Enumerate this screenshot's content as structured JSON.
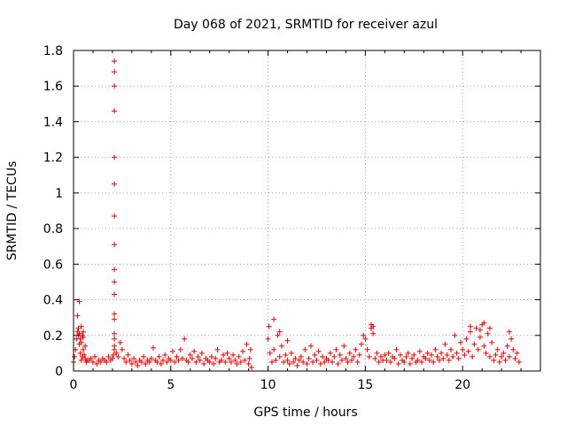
{
  "chart_data": {
    "type": "scatter",
    "title": "Day 068 of 2021, SRMTID for receiver azul",
    "xlabel": "GPS time / hours",
    "ylabel": "SRMTID / TECUs",
    "xlim": [
      0,
      24
    ],
    "ylim": [
      0,
      1.8
    ],
    "xticks": [
      0,
      5,
      10,
      15,
      20
    ],
    "xtick_labels": [
      "0",
      "5",
      "10",
      "15",
      "20"
    ],
    "yticks": [
      0,
      0.2,
      0.4,
      0.6,
      0.8,
      1,
      1.2,
      1.4,
      1.6,
      1.8
    ],
    "ytick_labels": [
      "0",
      "0.2",
      "0.4",
      "0.6",
      "0.8",
      "1",
      "1.2",
      "1.4",
      "1.6",
      "1.8"
    ],
    "grid": true,
    "marker": "+",
    "color": "#e00000",
    "series": [
      {
        "name": "SRMTID",
        "x": [
          0.0,
          0.05,
          0.1,
          0.15,
          0.2,
          0.25,
          0.3,
          0.35,
          0.4,
          0.45,
          0.5,
          0.55,
          0.6,
          0.65,
          0.7,
          0.2,
          0.25,
          0.3,
          0.35,
          0.4,
          0.45,
          0.5,
          0.3,
          0.4,
          0.5,
          0.6,
          0.8,
          0.9,
          1.0,
          1.1,
          1.2,
          1.3,
          1.4,
          1.5,
          1.6,
          1.7,
          1.8,
          1.9,
          2.0,
          2.05,
          2.1,
          2.1,
          2.1,
          2.1,
          2.1,
          2.1,
          2.1,
          2.1,
          2.1,
          2.1,
          2.1,
          2.1,
          2.1,
          2.1,
          2.1,
          2.1,
          2.1,
          2.2,
          2.3,
          2.4,
          2.5,
          2.6,
          2.7,
          2.8,
          2.9,
          3.0,
          3.1,
          3.2,
          3.3,
          3.4,
          3.5,
          3.6,
          3.7,
          3.8,
          3.9,
          4.0,
          4.1,
          4.2,
          4.3,
          4.4,
          4.5,
          4.6,
          4.7,
          4.8,
          4.9,
          5.0,
          5.1,
          5.2,
          5.3,
          5.4,
          5.5,
          5.6,
          5.7,
          5.8,
          5.9,
          6.0,
          6.1,
          6.2,
          6.3,
          6.4,
          6.5,
          6.6,
          6.7,
          6.8,
          6.9,
          7.0,
          7.1,
          7.2,
          7.3,
          7.4,
          7.5,
          7.6,
          7.7,
          7.8,
          7.9,
          8.0,
          8.1,
          8.2,
          8.3,
          8.4,
          8.5,
          8.6,
          8.7,
          8.8,
          8.9,
          9.0,
          9.05,
          9.1,
          9.15,
          10.0,
          10.05,
          10.1,
          10.2,
          10.3,
          10.4,
          10.5,
          10.6,
          10.7,
          10.8,
          10.9,
          11.0,
          11.1,
          11.2,
          11.3,
          11.4,
          11.5,
          11.6,
          11.7,
          11.8,
          11.9,
          12.0,
          12.1,
          12.2,
          12.3,
          12.4,
          12.5,
          12.6,
          12.7,
          12.8,
          12.9,
          13.0,
          13.1,
          13.2,
          13.3,
          13.4,
          13.5,
          13.6,
          13.7,
          13.8,
          13.9,
          14.0,
          14.1,
          14.2,
          14.3,
          14.4,
          14.5,
          14.6,
          14.7,
          14.8,
          14.9,
          15.0,
          15.1,
          15.2,
          15.3,
          15.4,
          15.5,
          15.6,
          15.7,
          15.8,
          15.9,
          16.0,
          16.1,
          16.2,
          16.3,
          16.4,
          16.5,
          16.6,
          16.7,
          16.8,
          16.9,
          17.0,
          17.1,
          17.2,
          17.3,
          17.4,
          17.5,
          17.6,
          17.7,
          17.8,
          17.9,
          18.0,
          18.1,
          18.2,
          18.3,
          18.4,
          18.5,
          18.6,
          18.7,
          18.8,
          18.9,
          19.0,
          19.1,
          19.2,
          19.3,
          19.4,
          19.5,
          19.6,
          19.7,
          19.8,
          19.9,
          20.0,
          20.1,
          20.2,
          20.3,
          20.4,
          20.5,
          20.6,
          20.7,
          20.8,
          20.9,
          21.0,
          21.1,
          21.2,
          21.3,
          21.4,
          21.5,
          21.6,
          21.7,
          21.8,
          21.9,
          22.0,
          22.1,
          22.2,
          22.3,
          22.4,
          22.5,
          22.6,
          22.7,
          22.8,
          22.9,
          10.3,
          10.6,
          11.0,
          15.3,
          15.4,
          20.4,
          20.9,
          21.1,
          21.4,
          22.4
        ],
        "values": [
          0.05,
          0.08,
          0.12,
          0.18,
          0.22,
          0.2,
          0.15,
          0.1,
          0.06,
          0.08,
          0.12,
          0.09,
          0.07,
          0.05,
          0.06,
          0.31,
          0.24,
          0.21,
          0.18,
          0.25,
          0.2,
          0.22,
          0.39,
          0.16,
          0.19,
          0.14,
          0.06,
          0.07,
          0.05,
          0.08,
          0.04,
          0.06,
          0.05,
          0.07,
          0.06,
          0.05,
          0.08,
          0.06,
          0.07,
          0.09,
          1.74,
          1.68,
          1.6,
          1.46,
          1.2,
          1.05,
          0.87,
          0.71,
          0.57,
          0.5,
          0.43,
          0.32,
          0.29,
          0.21,
          0.18,
          0.14,
          0.12,
          0.1,
          0.08,
          0.16,
          0.12,
          0.07,
          0.05,
          0.09,
          0.06,
          0.04,
          0.07,
          0.05,
          0.03,
          0.06,
          0.05,
          0.08,
          0.04,
          0.06,
          0.05,
          0.07,
          0.13,
          0.06,
          0.05,
          0.08,
          0.04,
          0.06,
          0.09,
          0.05,
          0.07,
          0.06,
          0.11,
          0.05,
          0.08,
          0.06,
          0.12,
          0.07,
          0.18,
          0.06,
          0.05,
          0.09,
          0.07,
          0.11,
          0.05,
          0.08,
          0.06,
          0.1,
          0.04,
          0.07,
          0.06,
          0.05,
          0.08,
          0.04,
          0.07,
          0.12,
          0.05,
          0.06,
          0.09,
          0.05,
          0.1,
          0.07,
          0.05,
          0.09,
          0.06,
          0.04,
          0.08,
          0.05,
          0.11,
          0.06,
          0.15,
          0.04,
          0.07,
          0.12,
          0.02,
          0.18,
          0.25,
          0.1,
          0.05,
          0.12,
          0.06,
          0.2,
          0.08,
          0.14,
          0.05,
          0.09,
          0.06,
          0.04,
          0.1,
          0.05,
          0.07,
          0.03,
          0.06,
          0.08,
          0.05,
          0.12,
          0.04,
          0.07,
          0.14,
          0.05,
          0.09,
          0.06,
          0.11,
          0.04,
          0.08,
          0.05,
          0.07,
          0.06,
          0.1,
          0.05,
          0.08,
          0.12,
          0.04,
          0.09,
          0.06,
          0.14,
          0.07,
          0.05,
          0.1,
          0.06,
          0.08,
          0.12,
          0.05,
          0.09,
          0.15,
          0.2,
          0.18,
          0.12,
          0.08,
          0.24,
          0.21,
          0.07,
          0.1,
          0.05,
          0.08,
          0.06,
          0.09,
          0.06,
          0.1,
          0.05,
          0.08,
          0.07,
          0.12,
          0.04,
          0.09,
          0.06,
          0.05,
          0.08,
          0.1,
          0.04,
          0.07,
          0.09,
          0.05,
          0.06,
          0.11,
          0.05,
          0.08,
          0.07,
          0.1,
          0.06,
          0.09,
          0.05,
          0.12,
          0.08,
          0.06,
          0.1,
          0.07,
          0.15,
          0.09,
          0.06,
          0.12,
          0.08,
          0.2,
          0.1,
          0.07,
          0.16,
          0.12,
          0.09,
          0.18,
          0.11,
          0.22,
          0.08,
          0.15,
          0.24,
          0.12,
          0.19,
          0.26,
          0.14,
          0.1,
          0.21,
          0.08,
          0.16,
          0.06,
          0.09,
          0.12,
          0.05,
          0.08,
          0.1,
          0.06,
          0.14,
          0.08,
          0.18,
          0.12,
          0.07,
          0.1,
          0.05,
          0.29,
          0.22,
          0.17,
          0.26,
          0.25,
          0.25,
          0.23,
          0.27,
          0.24,
          0.22
        ]
      }
    ]
  }
}
